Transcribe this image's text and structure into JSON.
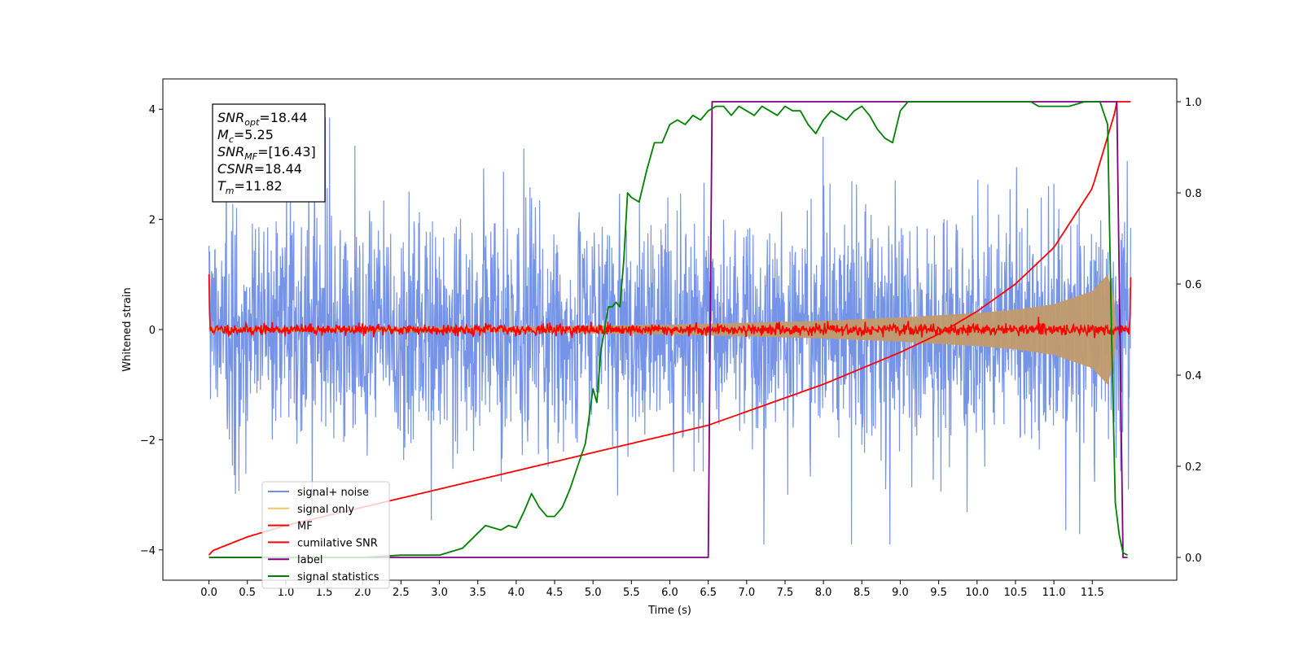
{
  "chart_data": {
    "type": "line",
    "xlabel": "Time (s)",
    "ylabel": "Whitened strain",
    "xlim": [
      -0.6,
      12.6
    ],
    "ylim_left": [
      -4.55,
      4.55
    ],
    "ylim_right": [
      -0.05,
      1.05
    ],
    "xticks": [
      0.0,
      0.5,
      1.0,
      1.5,
      2.0,
      2.5,
      3.0,
      3.5,
      4.0,
      4.5,
      5.0,
      5.5,
      6.0,
      6.5,
      7.0,
      7.5,
      8.0,
      8.5,
      9.0,
      9.5,
      10.0,
      10.5,
      11.0,
      11.5
    ],
    "xtick_labels": [
      "0.0",
      "0.5",
      "1.0",
      "1.5",
      "2.0",
      "2.5",
      "3.0",
      "3.5",
      "4.0",
      "4.5",
      "5.0",
      "5.5",
      "6.0",
      "6.5",
      "7.0",
      "7.5",
      "8.0",
      "8.5",
      "9.0",
      "9.5",
      "10.0",
      "10.5",
      "11.0",
      "11.5"
    ],
    "yticks_left": [
      -4,
      -2,
      0,
      2,
      4
    ],
    "ytick_labels_left": [
      "−4",
      "−2",
      "0",
      "2",
      "4"
    ],
    "yticks_right": [
      0.0,
      0.2,
      0.4,
      0.6,
      0.8,
      1.0
    ],
    "ytick_labels_right": [
      "0.0",
      "0.2",
      "0.4",
      "0.6",
      "0.8",
      "1.0"
    ],
    "grid": false,
    "legend_position": "lower-left",
    "annotation": [
      {
        "base": "SNR",
        "sub": "opt",
        "value": "=18.44"
      },
      {
        "base": "M",
        "sub": "c",
        "value": "=5.25"
      },
      {
        "base": "SNR",
        "sub": "MF",
        "value": "=[16.43]"
      },
      {
        "base": "CSNR",
        "sub": "",
        "value": "=18.44"
      },
      {
        "base": "T",
        "sub": "m",
        "value": "=11.82"
      }
    ],
    "series": [
      {
        "name": "signal+ noise",
        "axis": "left",
        "color": "#6f8ee6",
        "description": "whitened noise plus signal, amplitude mostly within ±2.5 with spikes to ±3.9",
        "x_range": [
          0.0,
          12.0
        ],
        "envelope": 2.2,
        "seed": 7
      },
      {
        "name": "signal only",
        "axis": "left",
        "color": "#f2c36b",
        "description": "chirp waveform growing until merger near 11.8 s",
        "envelope": [
          [
            0.0,
            0.04
          ],
          [
            4.0,
            0.05
          ],
          [
            6.0,
            0.09
          ],
          [
            8.0,
            0.16
          ],
          [
            9.0,
            0.22
          ],
          [
            10.0,
            0.3
          ],
          [
            10.5,
            0.36
          ],
          [
            11.0,
            0.46
          ],
          [
            11.5,
            0.7
          ],
          [
            11.7,
            1.0
          ],
          [
            11.78,
            0.6
          ],
          [
            11.82,
            0.0
          ]
        ]
      },
      {
        "name": "MF",
        "axis": "left",
        "color": "#ff0000",
        "description": "matched-filter output near zero with small fluctuations, spikes at both ends",
        "x_range": [
          0.0,
          12.0
        ],
        "noise": 0.05,
        "spikes": [
          [
            0.0,
            1.0
          ],
          [
            12.0,
            0.95
          ]
        ],
        "seed": 11
      },
      {
        "name": "cumilative SNR",
        "axis": "right",
        "color": "#ff0000",
        "x": [
          0.0,
          0.05,
          0.5,
          1.0,
          2.0,
          3.0,
          4.0,
          5.0,
          6.0,
          6.5,
          7.0,
          8.0,
          9.0,
          9.5,
          10.0,
          10.5,
          11.0,
          11.5,
          11.8,
          11.82,
          12.0
        ],
        "y": [
          0.005,
          0.015,
          0.045,
          0.07,
          0.11,
          0.15,
          0.19,
          0.23,
          0.27,
          0.29,
          0.32,
          0.38,
          0.45,
          0.49,
          0.54,
          0.6,
          0.68,
          0.81,
          0.98,
          1.0,
          1.0
        ]
      },
      {
        "name": "label",
        "axis": "right",
        "color": "#800080",
        "x": [
          0.0,
          6.5,
          6.55,
          11.82,
          11.9,
          11.96
        ],
        "y": [
          0.0,
          0.0,
          1.0,
          1.0,
          0.0,
          0.0
        ]
      },
      {
        "name": "signal statistics",
        "axis": "right",
        "color": "#008000",
        "x": [
          0.0,
          0.5,
          1.0,
          1.5,
          2.0,
          2.5,
          3.0,
          3.3,
          3.6,
          3.8,
          3.9,
          4.0,
          4.1,
          4.2,
          4.3,
          4.4,
          4.5,
          4.6,
          4.7,
          4.8,
          4.9,
          5.0,
          5.05,
          5.1,
          5.15,
          5.2,
          5.25,
          5.3,
          5.35,
          5.4,
          5.45,
          5.5,
          5.6,
          5.7,
          5.8,
          5.9,
          6.0,
          6.1,
          6.2,
          6.3,
          6.4,
          6.5,
          6.6,
          6.7,
          6.8,
          6.9,
          7.0,
          7.1,
          7.2,
          7.3,
          7.4,
          7.5,
          7.6,
          7.7,
          7.8,
          7.9,
          8.0,
          8.1,
          8.2,
          8.3,
          8.4,
          8.5,
          8.6,
          8.7,
          8.8,
          8.9,
          9.0,
          9.1,
          9.2,
          9.5,
          10.0,
          10.5,
          10.7,
          10.8,
          11.0,
          11.2,
          11.4,
          11.6,
          11.7,
          11.75,
          11.8,
          11.85,
          11.9,
          11.96
        ],
        "y": [
          0.0,
          0.0,
          0.0,
          0.0,
          0.0,
          0.005,
          0.005,
          0.02,
          0.07,
          0.06,
          0.07,
          0.065,
          0.1,
          0.14,
          0.11,
          0.09,
          0.09,
          0.11,
          0.15,
          0.2,
          0.25,
          0.37,
          0.34,
          0.45,
          0.5,
          0.55,
          0.55,
          0.56,
          0.55,
          0.65,
          0.8,
          0.79,
          0.78,
          0.85,
          0.91,
          0.91,
          0.95,
          0.96,
          0.95,
          0.97,
          0.96,
          0.98,
          0.99,
          0.99,
          0.97,
          0.99,
          0.98,
          0.97,
          0.99,
          0.98,
          0.97,
          0.99,
          0.98,
          0.98,
          0.95,
          0.93,
          0.96,
          0.98,
          0.97,
          0.96,
          0.98,
          0.99,
          0.97,
          0.94,
          0.92,
          0.91,
          0.98,
          1.0,
          1.0,
          1.0,
          1.0,
          1.0,
          1.0,
          0.99,
          0.99,
          0.99,
          1.0,
          1.0,
          0.95,
          0.5,
          0.12,
          0.05,
          0.01,
          0.005
        ]
      }
    ]
  }
}
